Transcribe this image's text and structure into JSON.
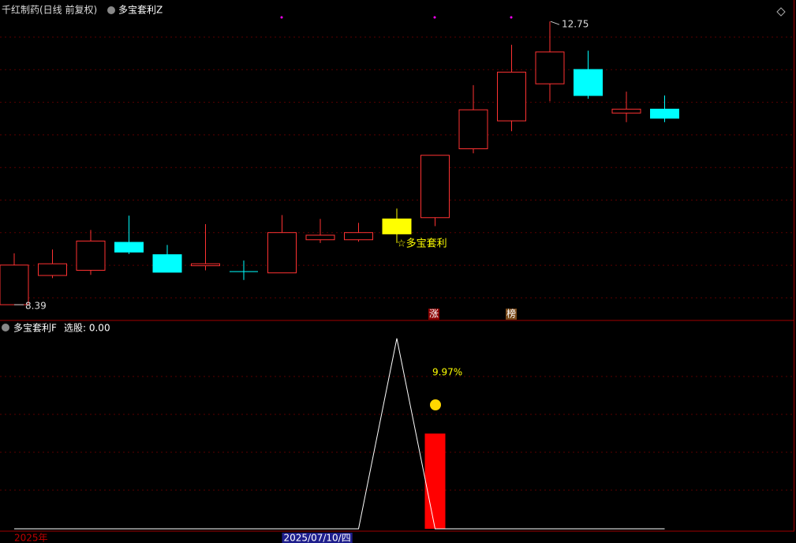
{
  "chart_data": [
    {
      "type": "candlestick",
      "title": "千红制药(日线 前复权)",
      "subtitle": "多宝套利Z",
      "categories": [
        "2025年",
        null,
        null,
        null,
        null,
        null,
        null,
        "2025/07/10/四",
        null,
        null,
        null,
        null,
        null,
        null,
        null,
        null,
        null,
        null
      ],
      "open": [
        8.39,
        8.84,
        8.92,
        9.35,
        9.16,
        8.99,
        8.9,
        8.88,
        9.39,
        9.39,
        9.71,
        9.73,
        10.79,
        11.22,
        11.79,
        12.01,
        11.34,
        11.4
      ],
      "high": [
        9.18,
        9.24,
        9.54,
        9.76,
        9.31,
        9.63,
        9.07,
        9.77,
        9.71,
        9.65,
        9.87,
        10.69,
        11.77,
        12.39,
        12.75,
        12.3,
        11.67,
        11.61
      ],
      "low": [
        8.39,
        8.8,
        8.85,
        9.17,
        8.89,
        8.92,
        8.77,
        8.88,
        9.34,
        9.36,
        9.34,
        9.6,
        10.72,
        11.06,
        11.52,
        11.56,
        11.2,
        11.2
      ],
      "close": [
        9.0,
        9.02,
        9.37,
        9.2,
        8.89,
        9.02,
        8.9,
        9.5,
        9.46,
        9.5,
        9.48,
        10.69,
        11.39,
        11.97,
        12.28,
        11.61,
        11.4,
        11.26
      ],
      "up_color": "#ff3232",
      "down_color": "#00ffff",
      "signal_color": "#ffff00",
      "signal_label": "☆多宝套利",
      "ylim": [
        8.16,
        13.08
      ],
      "tags": [
        "涨",
        "榜"
      ]
    },
    {
      "type": "line-bar",
      "title": "多宝套利F",
      "subtitle": "选股: 0.00",
      "line": {
        "color": "#ffffff",
        "values": [
          0,
          0,
          0,
          0,
          0,
          0,
          0,
          0,
          0,
          0,
          1,
          0,
          0,
          0,
          0,
          0,
          0,
          0
        ]
      },
      "bars": {
        "color": "#ff0000",
        "values": [
          null,
          null,
          null,
          null,
          null,
          null,
          null,
          null,
          null,
          null,
          null,
          0.5,
          null,
          null,
          null,
          null,
          null,
          null
        ]
      },
      "annotation": "9.97%",
      "ylim": [
        0,
        1.09
      ]
    }
  ]
}
